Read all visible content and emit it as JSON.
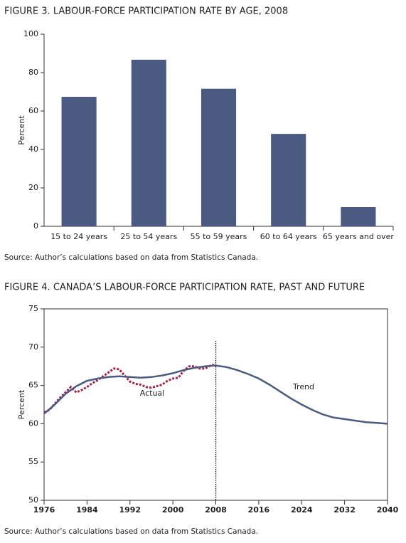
{
  "chart_data": [
    {
      "type": "bar",
      "title": "FIGURE 3. LABOUR-FORCE PARTICIPATION RATE BY AGE, 2008",
      "ylabel": "Percent",
      "categories": [
        "15 to 24 years",
        "25 to 54 years",
        "55 to 59 years",
        "60 to 64 years",
        "65 years and over"
      ],
      "values": [
        67.4,
        86.7,
        71.6,
        48.1,
        10.0
      ],
      "color": "#4a5a80",
      "ylim": [
        0,
        100
      ],
      "yticks": [
        0,
        20,
        40,
        60,
        80,
        100
      ],
      "source": "Source: Author’s calculations based on data from Statistics Canada."
    },
    {
      "type": "line",
      "title": "FIGURE 4. CANADA’S LABOUR-FORCE PARTICIPATION RATE, PAST AND FUTURE",
      "ylabel": "Percent",
      "xlim": [
        1976,
        2040
      ],
      "xticks": [
        1976,
        1984,
        1992,
        2000,
        2008,
        2016,
        2024,
        2032,
        2040
      ],
      "ylim": [
        50,
        75
      ],
      "yticks": [
        50,
        55,
        60,
        65,
        70,
        75
      ],
      "vline": 2008,
      "series": [
        {
          "name": "Actual",
          "color": "#a3234a",
          "dashed": true,
          "x": [
            1976,
            1977,
            1978,
            1979,
            1980,
            1981,
            1982,
            1983,
            1984,
            1985,
            1986,
            1987,
            1988,
            1989,
            1990,
            1991,
            1992,
            1993,
            1994,
            1995,
            1996,
            1997,
            1998,
            1999,
            2000,
            2001,
            2002,
            2003,
            2004,
            2005,
            2006,
            2007,
            2008
          ],
          "values": [
            61.5,
            61.8,
            62.6,
            63.4,
            64.1,
            64.8,
            64.1,
            64.4,
            64.8,
            65.3,
            65.7,
            66.2,
            66.7,
            67.2,
            67.1,
            66.3,
            65.5,
            65.2,
            65.1,
            64.8,
            64.7,
            64.9,
            65.1,
            65.6,
            65.9,
            66.0,
            66.9,
            67.5,
            67.5,
            67.2,
            67.2,
            67.6,
            67.7
          ]
        },
        {
          "name": "Trend",
          "color": "#4a5a80",
          "dashed": false,
          "x": [
            1976,
            1978,
            1980,
            1982,
            1984,
            1986,
            1988,
            1990,
            1992,
            1994,
            1996,
            1998,
            2000,
            2002,
            2004,
            2006,
            2008,
            2010,
            2012,
            2014,
            2016,
            2018,
            2020,
            2022,
            2024,
            2026,
            2028,
            2030,
            2032,
            2034,
            2036,
            2038,
            2040
          ],
          "values": [
            61.3,
            62.5,
            63.9,
            64.9,
            65.6,
            65.9,
            66.1,
            66.2,
            66.1,
            66.0,
            66.1,
            66.3,
            66.6,
            67.0,
            67.3,
            67.5,
            67.6,
            67.4,
            67.0,
            66.5,
            65.9,
            65.1,
            64.2,
            63.3,
            62.5,
            61.8,
            61.2,
            60.8,
            60.6,
            60.4,
            60.2,
            60.1,
            60.0
          ]
        }
      ],
      "source": "Source: Author’s calculations based on data from Statistics Canada."
    }
  ]
}
